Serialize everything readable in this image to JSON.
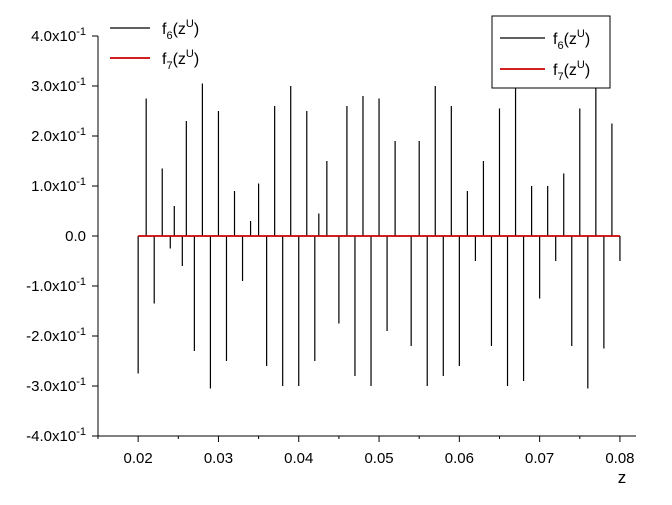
{
  "chart_data": {
    "type": "line",
    "title": "",
    "xlabel": "z",
    "ylabel": "",
    "xlim": [
      0.015,
      0.082
    ],
    "ylim": [
      -0.4,
      0.4
    ],
    "x_ticks": [
      0.02,
      0.03,
      0.04,
      0.05,
      0.06,
      0.07,
      0.08
    ],
    "x_tick_labels": [
      "0.02",
      "0.03",
      "0.04",
      "0.05",
      "0.06",
      "0.07",
      "0.08"
    ],
    "y_ticks": [
      0.4,
      0.3,
      0.2,
      0.1,
      0.0,
      -0.1,
      -0.2,
      -0.3,
      -0.4
    ],
    "y_tick_labels": [
      {
        "mantissa": "4.0x10",
        "exp": "-1"
      },
      {
        "mantissa": "3.0x10",
        "exp": "-1"
      },
      {
        "mantissa": "2.0x10",
        "exp": "-1"
      },
      {
        "mantissa": "1.0x10",
        "exp": "-1"
      },
      {
        "mantissa": "0.0",
        "exp": ""
      },
      {
        "mantissa": "-1.0x10",
        "exp": "-1"
      },
      {
        "mantissa": "-2.0x10",
        "exp": "-1"
      },
      {
        "mantissa": "-3.0x10",
        "exp": "-1"
      },
      {
        "mantissa": "-4.0x10",
        "exp": "-1"
      }
    ],
    "legends": [
      {
        "position": "top-left-inside",
        "boxed": false
      },
      {
        "position": "top-right-inside",
        "boxed": true
      }
    ],
    "series": [
      {
        "name": {
          "base": "f",
          "sub": "6",
          "arg": "(z",
          "sup": "U",
          "close": ")"
        },
        "color": "#000000",
        "spikes": [
          {
            "x": 0.02,
            "y": -0.275
          },
          {
            "x": 0.021,
            "y": 0.275
          },
          {
            "x": 0.022,
            "y": -0.135
          },
          {
            "x": 0.023,
            "y": 0.135
          },
          {
            "x": 0.024,
            "y": -0.025
          },
          {
            "x": 0.0245,
            "y": 0.06
          },
          {
            "x": 0.0255,
            "y": -0.06
          },
          {
            "x": 0.026,
            "y": 0.23
          },
          {
            "x": 0.027,
            "y": -0.23
          },
          {
            "x": 0.028,
            "y": 0.305
          },
          {
            "x": 0.029,
            "y": -0.305
          },
          {
            "x": 0.03,
            "y": 0.25
          },
          {
            "x": 0.031,
            "y": -0.25
          },
          {
            "x": 0.032,
            "y": 0.09
          },
          {
            "x": 0.033,
            "y": -0.09
          },
          {
            "x": 0.034,
            "y": 0.03
          },
          {
            "x": 0.035,
            "y": 0.105
          },
          {
            "x": 0.036,
            "y": -0.26
          },
          {
            "x": 0.037,
            "y": 0.26
          },
          {
            "x": 0.038,
            "y": -0.3
          },
          {
            "x": 0.039,
            "y": 0.3
          },
          {
            "x": 0.04,
            "y": -0.3
          },
          {
            "x": 0.041,
            "y": 0.25
          },
          {
            "x": 0.042,
            "y": -0.25
          },
          {
            "x": 0.0425,
            "y": 0.045
          },
          {
            "x": 0.0435,
            "y": 0.15
          },
          {
            "x": 0.045,
            "y": -0.175
          },
          {
            "x": 0.046,
            "y": 0.26
          },
          {
            "x": 0.047,
            "y": -0.28
          },
          {
            "x": 0.048,
            "y": 0.28
          },
          {
            "x": 0.049,
            "y": -0.3
          },
          {
            "x": 0.05,
            "y": 0.275
          },
          {
            "x": 0.051,
            "y": -0.19
          },
          {
            "x": 0.052,
            "y": 0.19
          },
          {
            "x": 0.054,
            "y": -0.22
          },
          {
            "x": 0.055,
            "y": 0.19
          },
          {
            "x": 0.056,
            "y": -0.3
          },
          {
            "x": 0.057,
            "y": 0.3
          },
          {
            "x": 0.058,
            "y": -0.28
          },
          {
            "x": 0.059,
            "y": 0.26
          },
          {
            "x": 0.06,
            "y": -0.26
          },
          {
            "x": 0.061,
            "y": 0.09
          },
          {
            "x": 0.062,
            "y": -0.05
          },
          {
            "x": 0.063,
            "y": 0.15
          },
          {
            "x": 0.064,
            "y": -0.22
          },
          {
            "x": 0.065,
            "y": 0.255
          },
          {
            "x": 0.066,
            "y": -0.3
          },
          {
            "x": 0.067,
            "y": 0.3
          },
          {
            "x": 0.068,
            "y": -0.29
          },
          {
            "x": 0.069,
            "y": 0.1
          },
          {
            "x": 0.07,
            "y": -0.125
          },
          {
            "x": 0.071,
            "y": 0.1
          },
          {
            "x": 0.072,
            "y": -0.05
          },
          {
            "x": 0.073,
            "y": 0.125
          },
          {
            "x": 0.074,
            "y": -0.22
          },
          {
            "x": 0.075,
            "y": 0.255
          },
          {
            "x": 0.076,
            "y": -0.305
          },
          {
            "x": 0.077,
            "y": 0.305
          },
          {
            "x": 0.078,
            "y": -0.225
          },
          {
            "x": 0.079,
            "y": 0.225
          },
          {
            "x": 0.08,
            "y": -0.05
          }
        ]
      },
      {
        "name": {
          "base": "f",
          "sub": "7",
          "arg": "(z",
          "sup": "U",
          "close": ")"
        },
        "color": "#cc0000",
        "x_range": [
          0.02,
          0.08
        ],
        "y": 0.0
      }
    ]
  }
}
